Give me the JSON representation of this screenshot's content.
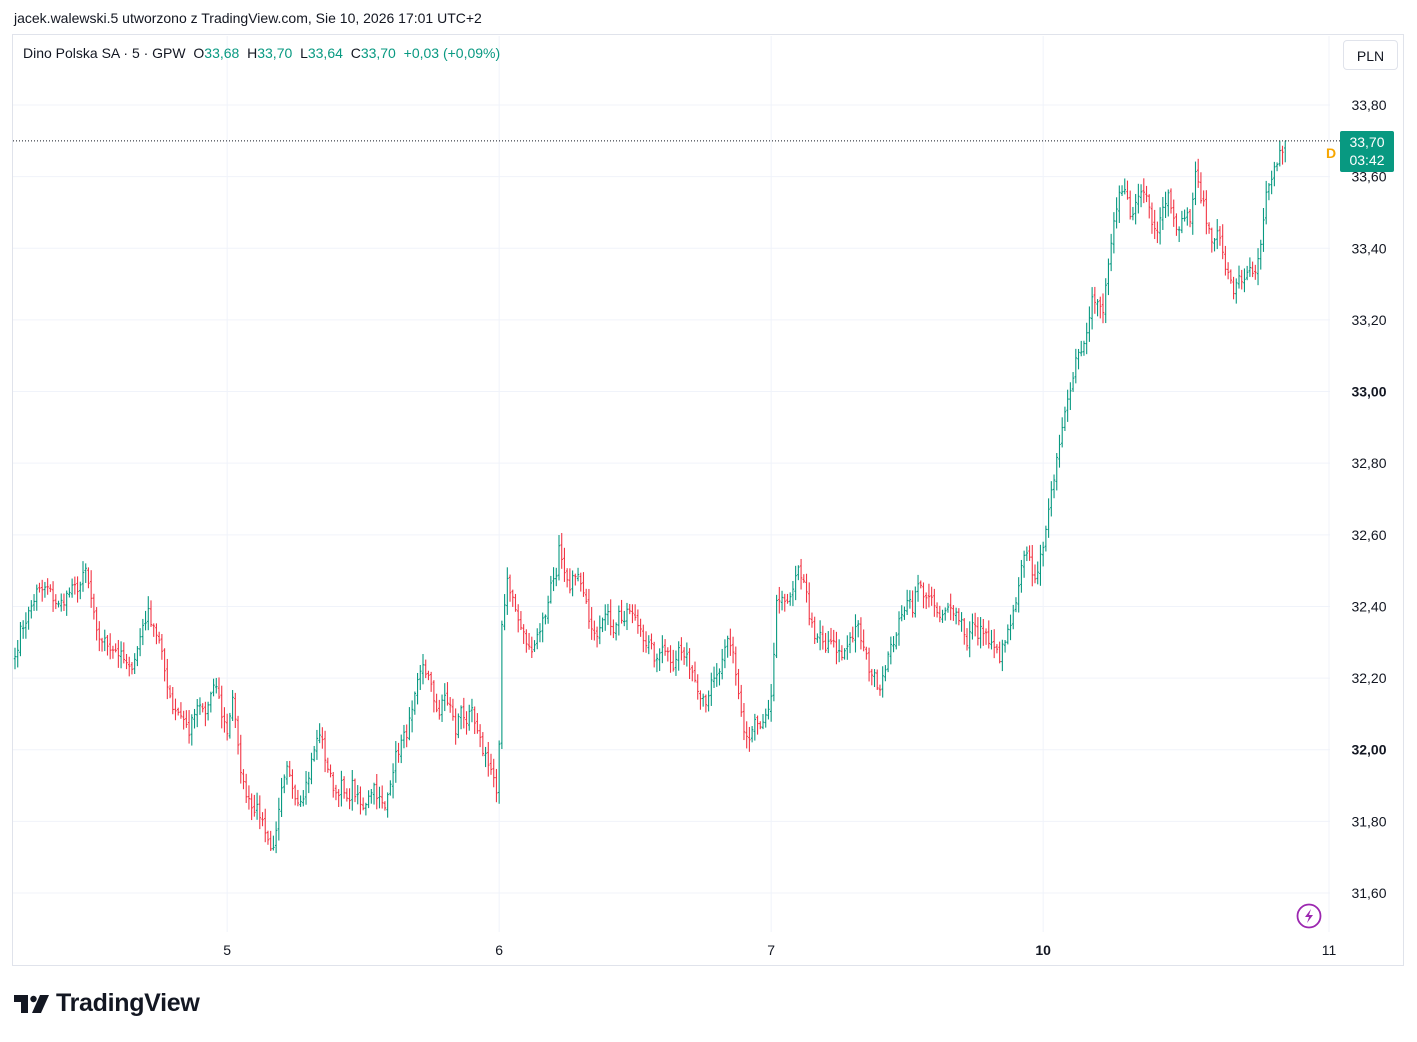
{
  "header": {
    "attribution": "jacek.walewski.5 utworzono z TradingView.com, Sie 10, 2026 17:01 UTC+2"
  },
  "legend": {
    "symbol": "Dino Polska SA · 5 · GPW",
    "o_label": "O",
    "o_value": "33,68",
    "h_label": "H",
    "h_value": "33,70",
    "l_label": "L",
    "l_value": "33,64",
    "c_label": "C",
    "c_value": "33,70",
    "change": "+0,03 (+0,09%)"
  },
  "currency_button": "PLN",
  "price_badge": {
    "price": "33,70",
    "countdown": "03:42",
    "color": "#089981"
  },
  "dividend_marker": "D",
  "brand": {
    "name": "TradingView"
  },
  "colors": {
    "up": "#089981",
    "down": "#f23645",
    "grid": "#f0f3fa",
    "accent_replay": "#9c27b0"
  },
  "icons": [
    "lightning-icon",
    "tradingview-logo-icon"
  ],
  "chart_data": {
    "type": "ohlc",
    "interval": "5",
    "ylim": [
      31.5,
      33.85
    ],
    "y_ticks": [
      {
        "value": 31.6,
        "label": "31,60",
        "bold": false
      },
      {
        "value": 31.8,
        "label": "31,80",
        "bold": false
      },
      {
        "value": 32.0,
        "label": "32,00",
        "bold": true
      },
      {
        "value": 32.2,
        "label": "32,20",
        "bold": false
      },
      {
        "value": 32.4,
        "label": "32,40",
        "bold": false
      },
      {
        "value": 32.6,
        "label": "32,60",
        "bold": false
      },
      {
        "value": 32.8,
        "label": "32,80",
        "bold": false
      },
      {
        "value": 33.0,
        "label": "33,00",
        "bold": true
      },
      {
        "value": 33.2,
        "label": "33,20",
        "bold": false
      },
      {
        "value": 33.4,
        "label": "33,40",
        "bold": false
      },
      {
        "value": 33.6,
        "label": "33,60",
        "bold": false
      },
      {
        "value": 33.8,
        "label": "33,80",
        "bold": false
      }
    ],
    "x_ticks": [
      {
        "bar": 78,
        "label": "5",
        "bold": false
      },
      {
        "bar": 178,
        "label": "6",
        "bold": false
      },
      {
        "bar": 278,
        "label": "7",
        "bold": false
      },
      {
        "bar": 378,
        "label": "10",
        "bold": true
      },
      {
        "bar": 483,
        "label": "11",
        "bold": false
      }
    ],
    "last_price": 33.7,
    "anchors": [
      [
        0,
        32.26
      ],
      [
        2,
        32.33
      ],
      [
        5,
        32.38
      ],
      [
        8,
        32.44
      ],
      [
        12,
        32.45
      ],
      [
        16,
        32.4
      ],
      [
        20,
        32.44
      ],
      [
        24,
        32.46
      ],
      [
        26,
        32.5
      ],
      [
        28,
        32.42
      ],
      [
        30,
        32.32
      ],
      [
        33,
        32.3
      ],
      [
        37,
        32.28
      ],
      [
        40,
        32.25
      ],
      [
        42,
        32.22
      ],
      [
        45,
        32.28
      ],
      [
        47,
        32.35
      ],
      [
        49,
        32.38
      ],
      [
        51,
        32.35
      ],
      [
        53,
        32.3
      ],
      [
        55,
        32.22
      ],
      [
        58,
        32.12
      ],
      [
        61,
        32.1
      ],
      [
        64,
        32.05
      ],
      [
        66,
        32.1
      ],
      [
        68,
        32.12
      ],
      [
        70,
        32.1
      ],
      [
        72,
        32.15
      ],
      [
        74,
        32.18
      ],
      [
        76,
        32.1
      ],
      [
        78,
        32.05
      ],
      [
        80,
        32.15
      ],
      [
        82,
        32.0
      ],
      [
        84,
        31.9
      ],
      [
        87,
        31.85
      ],
      [
        90,
        31.82
      ],
      [
        92,
        31.78
      ],
      [
        94,
        31.72
      ],
      [
        96,
        31.76
      ],
      [
        98,
        31.88
      ],
      [
        100,
        31.94
      ],
      [
        102,
        31.9
      ],
      [
        104,
        31.86
      ],
      [
        106,
        31.88
      ],
      [
        108,
        31.93
      ],
      [
        110,
        32.0
      ],
      [
        112,
        32.05
      ],
      [
        114,
        31.98
      ],
      [
        116,
        31.92
      ],
      [
        118,
        31.88
      ],
      [
        120,
        31.9
      ],
      [
        122,
        31.85
      ],
      [
        124,
        31.9
      ],
      [
        126,
        31.86
      ],
      [
        128,
        31.83
      ],
      [
        130,
        31.88
      ],
      [
        132,
        31.9
      ],
      [
        134,
        31.86
      ],
      [
        136,
        31.83
      ],
      [
        138,
        31.92
      ],
      [
        140,
        31.98
      ],
      [
        142,
        32.02
      ],
      [
        144,
        32.05
      ],
      [
        146,
        32.1
      ],
      [
        148,
        32.18
      ],
      [
        150,
        32.24
      ],
      [
        152,
        32.2
      ],
      [
        154,
        32.14
      ],
      [
        156,
        32.1
      ],
      [
        158,
        32.15
      ],
      [
        160,
        32.12
      ],
      [
        162,
        32.05
      ],
      [
        164,
        32.12
      ],
      [
        166,
        32.08
      ],
      [
        168,
        32.1
      ],
      [
        170,
        32.04
      ],
      [
        172,
        32.0
      ],
      [
        174,
        31.97
      ],
      [
        176,
        31.92
      ],
      [
        177,
        31.87
      ],
      [
        178,
        32.0
      ],
      [
        179,
        32.35
      ],
      [
        181,
        32.48
      ],
      [
        183,
        32.42
      ],
      [
        185,
        32.36
      ],
      [
        187,
        32.32
      ],
      [
        189,
        32.28
      ],
      [
        191,
        32.3
      ],
      [
        193,
        32.34
      ],
      [
        195,
        32.38
      ],
      [
        197,
        32.46
      ],
      [
        199,
        32.5
      ],
      [
        200,
        32.56
      ],
      [
        202,
        32.48
      ],
      [
        204,
        32.44
      ],
      [
        206,
        32.5
      ],
      [
        208,
        32.46
      ],
      [
        210,
        32.4
      ],
      [
        212,
        32.35
      ],
      [
        214,
        32.33
      ],
      [
        216,
        32.38
      ],
      [
        218,
        32.37
      ],
      [
        220,
        32.34
      ],
      [
        222,
        32.38
      ],
      [
        224,
        32.36
      ],
      [
        226,
        32.39
      ],
      [
        228,
        32.36
      ],
      [
        230,
        32.34
      ],
      [
        232,
        32.3
      ],
      [
        234,
        32.28
      ],
      [
        236,
        32.24
      ],
      [
        238,
        32.3
      ],
      [
        240,
        32.27
      ],
      [
        242,
        32.24
      ],
      [
        244,
        32.28
      ],
      [
        246,
        32.26
      ],
      [
        248,
        32.24
      ],
      [
        250,
        32.2
      ],
      [
        252,
        32.16
      ],
      [
        254,
        32.14
      ],
      [
        256,
        32.18
      ],
      [
        258,
        32.2
      ],
      [
        260,
        32.24
      ],
      [
        262,
        32.3
      ],
      [
        264,
        32.27
      ],
      [
        266,
        32.16
      ],
      [
        268,
        32.05
      ],
      [
        270,
        32.02
      ],
      [
        272,
        32.08
      ],
      [
        274,
        32.05
      ],
      [
        276,
        32.08
      ],
      [
        278,
        32.15
      ],
      [
        279,
        32.25
      ],
      [
        280,
        32.4
      ],
      [
        282,
        32.44
      ],
      [
        284,
        32.4
      ],
      [
        286,
        32.44
      ],
      [
        288,
        32.5
      ],
      [
        290,
        32.48
      ],
      [
        292,
        32.38
      ],
      [
        294,
        32.3
      ],
      [
        296,
        32.32
      ],
      [
        298,
        32.28
      ],
      [
        300,
        32.3
      ],
      [
        302,
        32.28
      ],
      [
        304,
        32.26
      ],
      [
        306,
        32.3
      ],
      [
        308,
        32.32
      ],
      [
        310,
        32.34
      ],
      [
        312,
        32.28
      ],
      [
        314,
        32.23
      ],
      [
        316,
        32.2
      ],
      [
        318,
        32.18
      ],
      [
        320,
        32.24
      ],
      [
        322,
        32.28
      ],
      [
        324,
        32.33
      ],
      [
        326,
        32.37
      ],
      [
        328,
        32.43
      ],
      [
        330,
        32.4
      ],
      [
        332,
        32.46
      ],
      [
        334,
        32.44
      ],
      [
        336,
        32.42
      ],
      [
        338,
        32.4
      ],
      [
        340,
        32.36
      ],
      [
        342,
        32.38
      ],
      [
        344,
        32.41
      ],
      [
        346,
        32.38
      ],
      [
        348,
        32.36
      ],
      [
        350,
        32.3
      ],
      [
        352,
        32.35
      ],
      [
        354,
        32.32
      ],
      [
        356,
        32.34
      ],
      [
        358,
        32.3
      ],
      [
        360,
        32.28
      ],
      [
        362,
        32.26
      ],
      [
        364,
        32.3
      ],
      [
        366,
        32.35
      ],
      [
        368,
        32.4
      ],
      [
        370,
        32.5
      ],
      [
        372,
        32.56
      ],
      [
        374,
        32.5
      ],
      [
        376,
        32.48
      ],
      [
        378,
        32.58
      ],
      [
        380,
        32.68
      ],
      [
        382,
        32.74
      ],
      [
        384,
        32.86
      ],
      [
        386,
        32.96
      ],
      [
        388,
        33.0
      ],
      [
        390,
        33.1
      ],
      [
        392,
        33.12
      ],
      [
        394,
        33.18
      ],
      [
        396,
        33.26
      ],
      [
        398,
        33.24
      ],
      [
        400,
        33.22
      ],
      [
        402,
        33.36
      ],
      [
        404,
        33.46
      ],
      [
        406,
        33.54
      ],
      [
        408,
        33.56
      ],
      [
        410,
        33.5
      ],
      [
        412,
        33.52
      ],
      [
        414,
        33.56
      ],
      [
        416,
        33.55
      ],
      [
        418,
        33.48
      ],
      [
        420,
        33.46
      ],
      [
        422,
        33.52
      ],
      [
        424,
        33.55
      ],
      [
        426,
        33.5
      ],
      [
        428,
        33.44
      ],
      [
        430,
        33.5
      ],
      [
        432,
        33.48
      ],
      [
        434,
        33.6
      ],
      [
        436,
        33.55
      ],
      [
        438,
        33.48
      ],
      [
        440,
        33.42
      ],
      [
        442,
        33.46
      ],
      [
        444,
        33.38
      ],
      [
        446,
        33.32
      ],
      [
        448,
        33.28
      ],
      [
        450,
        33.33
      ],
      [
        452,
        33.3
      ],
      [
        454,
        33.34
      ],
      [
        456,
        33.32
      ],
      [
        458,
        33.4
      ],
      [
        460,
        33.54
      ],
      [
        462,
        33.6
      ],
      [
        464,
        33.64
      ],
      [
        466,
        33.68
      ],
      [
        467,
        33.7
      ]
    ]
  }
}
